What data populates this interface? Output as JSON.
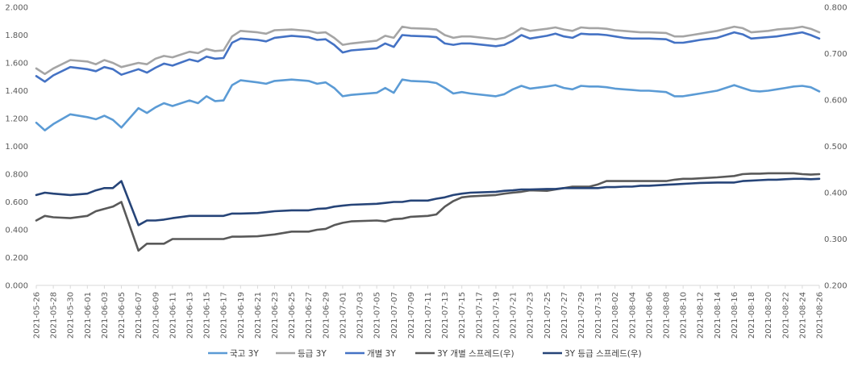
{
  "chart_data": {
    "type": "line",
    "left_axis": {
      "min": 0.0,
      "max": 2.0,
      "ticks": [
        "0.000",
        "0.200",
        "0.400",
        "0.600",
        "0.800",
        "1.000",
        "1.200",
        "1.400",
        "1.600",
        "1.800",
        "2.000"
      ]
    },
    "right_axis": {
      "min": 0.2,
      "max": 0.8,
      "ticks": [
        "0.200",
        "0.300",
        "0.400",
        "0.500",
        "0.600",
        "0.700",
        "0.800"
      ]
    },
    "x": [
      "2021-05-26",
      "2021-05-27",
      "2021-05-28",
      "2021-05-30",
      "2021-06-01",
      "2021-06-02",
      "2021-06-03",
      "2021-06-04",
      "2021-06-05",
      "2021-06-07",
      "2021-06-08",
      "2021-06-09",
      "2021-06-10",
      "2021-06-11",
      "2021-06-13",
      "2021-06-14",
      "2021-06-15",
      "2021-06-16",
      "2021-06-17",
      "2021-06-18",
      "2021-06-19",
      "2021-06-21",
      "2021-06-22",
      "2021-06-23",
      "2021-06-25",
      "2021-06-27",
      "2021-06-28",
      "2021-06-29",
      "2021-06-30",
      "2021-07-01",
      "2021-07-02",
      "2021-07-05",
      "2021-07-06",
      "2021-07-07",
      "2021-07-08",
      "2021-07-09",
      "2021-07-11",
      "2021-07-12",
      "2021-07-13",
      "2021-07-14",
      "2021-07-15",
      "2021-07-16",
      "2021-07-19",
      "2021-07-20",
      "2021-07-21",
      "2021-07-22",
      "2021-07-23",
      "2021-07-25",
      "2021-07-26",
      "2021-07-27",
      "2021-07-28",
      "2021-07-29",
      "2021-07-30",
      "2021-07-31",
      "2021-08-01",
      "2021-08-02",
      "2021-08-03",
      "2021-08-04",
      "2021-08-05",
      "2021-08-06",
      "2021-08-08",
      "2021-08-09",
      "2021-08-10",
      "2021-08-11",
      "2021-08-12",
      "2021-08-14",
      "2021-08-16",
      "2021-08-17",
      "2021-08-18",
      "2021-08-19",
      "2021-08-20",
      "2021-08-21",
      "2021-08-22",
      "2021-08-23",
      "2021-08-24",
      "2021-08-25",
      "2021-08-26"
    ],
    "x_tick_labels": [
      "2021-05-26",
      "2021-05-28",
      "2021-05-30",
      "2021-06-01",
      "2021-06-03",
      "2021-06-05",
      "2021-06-07",
      "2021-06-09",
      "2021-06-11",
      "2021-06-13",
      "2021-06-15",
      "2021-06-17",
      "2021-06-19",
      "2021-06-21",
      "2021-06-23",
      "2021-06-25",
      "2021-06-27",
      "2021-06-29",
      "2021-07-01",
      "2021-07-03",
      "2021-07-05",
      "2021-07-07",
      "2021-07-09",
      "2021-07-11",
      "2021-07-13",
      "2021-07-15",
      "2021-07-17",
      "2021-07-19",
      "2021-07-21",
      "2021-07-23",
      "2021-07-25",
      "2021-07-27",
      "2021-07-29",
      "2021-07-31",
      "2021-08-02",
      "2021-08-04",
      "2021-08-06",
      "2021-08-08",
      "2021-08-10",
      "2021-08-12",
      "2021-08-14",
      "2021-08-16",
      "2021-08-18",
      "2021-08-20",
      "2021-08-22",
      "2021-08-24",
      "2021-08-26"
    ],
    "series": [
      {
        "name": "국고 3Y",
        "axis": "left",
        "color": "#5B9BD5",
        "values": [
          1.17,
          1.115,
          1.16,
          1.23,
          1.21,
          1.195,
          1.22,
          1.19,
          1.135,
          1.275,
          1.24,
          1.28,
          1.31,
          1.29,
          1.33,
          1.31,
          1.36,
          1.325,
          1.33,
          1.44,
          1.475,
          1.46,
          1.45,
          1.47,
          1.48,
          1.47,
          1.45,
          1.46,
          1.42,
          1.36,
          1.37,
          1.385,
          1.42,
          1.385,
          1.48,
          1.47,
          1.465,
          1.455,
          1.42,
          1.38,
          1.39,
          1.38,
          1.36,
          1.375,
          1.41,
          1.435,
          1.415,
          1.43,
          1.44,
          1.42,
          1.41,
          1.435,
          1.43,
          1.43,
          1.425,
          1.415,
          1.41,
          1.405,
          1.4,
          1.4,
          1.39,
          1.36,
          1.36,
          1.37,
          1.38,
          1.4,
          1.44,
          1.42,
          1.4,
          1.395,
          1.4,
          1.41,
          1.42,
          1.43,
          1.435,
          1.425,
          1.395
        ]
      },
      {
        "name": "등급 3Y",
        "axis": "left",
        "color": "#A5A5A5",
        "values": [
          1.56,
          1.52,
          1.56,
          1.62,
          1.61,
          1.59,
          1.62,
          1.6,
          1.57,
          1.6,
          1.59,
          1.63,
          1.65,
          1.64,
          1.68,
          1.67,
          1.7,
          1.685,
          1.69,
          1.79,
          1.83,
          1.82,
          1.81,
          1.835,
          1.84,
          1.83,
          1.815,
          1.82,
          1.78,
          1.73,
          1.74,
          1.76,
          1.795,
          1.78,
          1.86,
          1.85,
          1.845,
          1.84,
          1.8,
          1.78,
          1.79,
          1.79,
          1.77,
          1.78,
          1.81,
          1.85,
          1.83,
          1.845,
          1.855,
          1.84,
          1.83,
          1.855,
          1.85,
          1.85,
          1.845,
          1.835,
          1.83,
          1.825,
          1.82,
          1.82,
          1.815,
          1.79,
          1.79,
          1.8,
          1.81,
          1.83,
          1.86,
          1.85,
          1.82,
          1.825,
          1.83,
          1.84,
          1.845,
          1.85,
          1.86,
          1.845,
          1.82
        ]
      },
      {
        "name": "개별 3Y",
        "axis": "left",
        "color": "#4472C4",
        "values": [
          1.505,
          1.465,
          1.51,
          1.57,
          1.555,
          1.54,
          1.57,
          1.555,
          1.515,
          1.555,
          1.53,
          1.565,
          1.595,
          1.58,
          1.625,
          1.61,
          1.645,
          1.63,
          1.635,
          1.745,
          1.775,
          1.765,
          1.755,
          1.78,
          1.795,
          1.785,
          1.765,
          1.77,
          1.73,
          1.675,
          1.69,
          1.705,
          1.74,
          1.715,
          1.8,
          1.795,
          1.79,
          1.785,
          1.74,
          1.73,
          1.74,
          1.74,
          1.72,
          1.73,
          1.76,
          1.8,
          1.775,
          1.795,
          1.81,
          1.79,
          1.78,
          1.81,
          1.805,
          1.805,
          1.8,
          1.79,
          1.78,
          1.775,
          1.775,
          1.775,
          1.77,
          1.745,
          1.745,
          1.755,
          1.765,
          1.78,
          1.82,
          1.805,
          1.775,
          1.78,
          1.785,
          1.79,
          1.8,
          1.81,
          1.82,
          1.8,
          1.775
        ]
      },
      {
        "name": "3Y 개별 스프레드(우)",
        "axis": "right",
        "color": "#595959",
        "values": [
          0.34,
          0.35,
          0.347,
          0.345,
          0.35,
          0.36,
          0.365,
          0.37,
          0.38,
          0.275,
          0.29,
          0.29,
          0.29,
          0.3,
          0.3,
          0.3,
          0.3,
          0.3,
          0.3,
          0.305,
          0.305,
          0.306,
          0.308,
          0.31,
          0.316,
          0.316,
          0.32,
          0.322,
          0.33,
          0.335,
          0.338,
          0.34,
          0.338,
          0.343,
          0.344,
          0.348,
          0.35,
          0.353,
          0.37,
          0.382,
          0.39,
          0.392,
          0.395,
          0.398,
          0.4,
          0.402,
          0.405,
          0.404,
          0.407,
          0.41,
          0.413,
          0.413,
          0.413,
          0.418,
          0.425,
          0.425,
          0.425,
          0.425,
          0.425,
          0.425,
          0.425,
          0.428,
          0.43,
          0.43,
          0.431,
          0.433,
          0.436,
          0.44,
          0.441,
          0.441,
          0.442,
          0.442,
          0.442,
          0.442,
          0.44,
          0.439,
          0.44
        ]
      },
      {
        "name": "3Y 등급 스프레드(우)",
        "axis": "right",
        "color": "#264478",
        "values": [
          0.395,
          0.4,
          0.398,
          0.395,
          0.398,
          0.405,
          0.41,
          0.41,
          0.425,
          0.33,
          0.34,
          0.34,
          0.342,
          0.345,
          0.35,
          0.35,
          0.35,
          0.35,
          0.35,
          0.355,
          0.355,
          0.356,
          0.358,
          0.36,
          0.362,
          0.362,
          0.365,
          0.366,
          0.37,
          0.372,
          0.374,
          0.376,
          0.378,
          0.38,
          0.38,
          0.383,
          0.383,
          0.387,
          0.39,
          0.395,
          0.398,
          0.4,
          0.402,
          0.404,
          0.405,
          0.407,
          0.407,
          0.408,
          0.408,
          0.41,
          0.41,
          0.41,
          0.41,
          0.41,
          0.412,
          0.412,
          0.413,
          0.413,
          0.415,
          0.415,
          0.417,
          0.418,
          0.419,
          0.42,
          0.421,
          0.422,
          0.422,
          0.425,
          0.426,
          0.427,
          0.428,
          0.428,
          0.429,
          0.43,
          0.43,
          0.429,
          0.43
        ]
      }
    ],
    "grid": false,
    "legend_position": "bottom"
  }
}
